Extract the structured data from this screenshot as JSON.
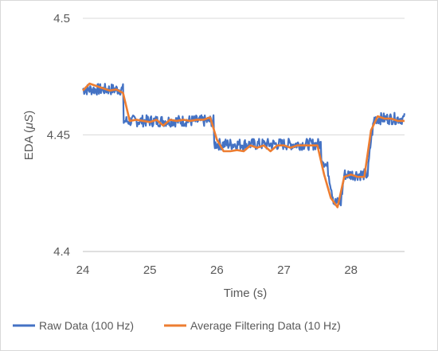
{
  "chart_data": {
    "type": "line",
    "title": "",
    "xlabel": "Time (s)",
    "ylabel_main": "EDA (",
    "ylabel_unit": "μS",
    "ylabel_close": ")",
    "xlim": [
      24,
      28.8
    ],
    "ylim": [
      4.4,
      4.5
    ],
    "xticks": [
      "24",
      "25",
      "26",
      "27",
      "28"
    ],
    "yticks": [
      "4.4",
      "4.45",
      "4.5"
    ],
    "grid": "horizontal",
    "legend_position": "bottom",
    "series": [
      {
        "name": "Raw Data (100 Hz)",
        "color": "#4472c4",
        "levels": [
          [
            24.0,
            4.4695
          ],
          [
            24.6,
            4.4695
          ],
          [
            24.6,
            4.456
          ],
          [
            25.95,
            4.456
          ],
          [
            25.95,
            4.446
          ],
          [
            27.55,
            4.446
          ],
          [
            27.55,
            4.441
          ],
          [
            27.65,
            4.436
          ],
          [
            27.75,
            4.421
          ],
          [
            27.85,
            4.421
          ],
          [
            27.9,
            4.433
          ],
          [
            28.25,
            4.433
          ],
          [
            28.3,
            4.448
          ],
          [
            28.35,
            4.457
          ],
          [
            28.8,
            4.457
          ]
        ],
        "noise": 0.0025
      },
      {
        "name": "Average Filtering Data (10 Hz)",
        "color": "#ed7d31",
        "x": [
          24.0,
          24.1,
          24.2,
          24.3,
          24.4,
          24.5,
          24.6,
          24.7,
          24.8,
          24.9,
          25.0,
          25.1,
          25.2,
          25.3,
          25.4,
          25.5,
          25.6,
          25.7,
          25.8,
          25.9,
          26.0,
          26.1,
          26.2,
          26.3,
          26.4,
          26.5,
          26.6,
          26.7,
          26.8,
          26.9,
          27.0,
          27.1,
          27.2,
          27.3,
          27.4,
          27.5,
          27.6,
          27.7,
          27.8,
          27.9,
          28.0,
          28.1,
          28.2,
          28.3,
          28.4,
          28.5,
          28.6,
          28.7,
          28.8
        ],
        "y": [
          4.469,
          4.472,
          4.471,
          4.47,
          4.469,
          4.4695,
          4.468,
          4.456,
          4.4565,
          4.456,
          4.4555,
          4.4565,
          4.454,
          4.4565,
          4.456,
          4.4565,
          4.456,
          4.4565,
          4.4565,
          4.4575,
          4.448,
          4.443,
          4.443,
          4.4435,
          4.443,
          4.4455,
          4.4445,
          4.4455,
          4.443,
          4.4455,
          4.4455,
          4.4445,
          4.4455,
          4.4455,
          4.4455,
          4.4455,
          4.433,
          4.423,
          4.419,
          4.432,
          4.433,
          4.432,
          4.432,
          4.452,
          4.458,
          4.457,
          4.457,
          4.456,
          4.456
        ]
      }
    ]
  }
}
